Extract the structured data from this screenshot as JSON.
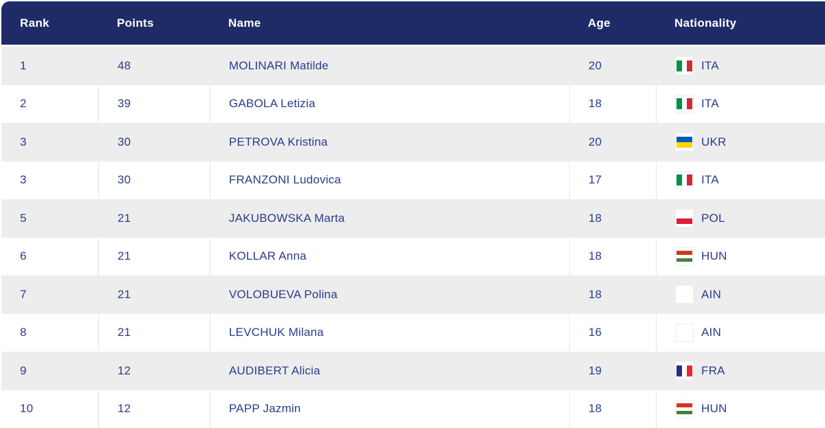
{
  "colors": {
    "header_bg": "#1e2b67",
    "header_text": "#ffffff",
    "row_bg": "#ffffff",
    "row_alt_bg": "#ededee",
    "cell_divider": "#e5e5e7",
    "text": "#2b3c8a"
  },
  "table": {
    "columns": [
      {
        "key": "rank",
        "label": "Rank"
      },
      {
        "key": "points",
        "label": "Points"
      },
      {
        "key": "name",
        "label": "Name"
      },
      {
        "key": "age",
        "label": "Age"
      },
      {
        "key": "nationality",
        "label": "Nationality"
      }
    ],
    "rows": [
      {
        "rank": "1",
        "points": "48",
        "name": "MOLINARI Matilde",
        "age": "20",
        "nationality": "ITA"
      },
      {
        "rank": "2",
        "points": "39",
        "name": "GABOLA Letizia",
        "age": "18",
        "nationality": "ITA"
      },
      {
        "rank": "3",
        "points": "30",
        "name": "PETROVA Kristina",
        "age": "20",
        "nationality": "UKR"
      },
      {
        "rank": "3",
        "points": "30",
        "name": "FRANZONI Ludovica",
        "age": "17",
        "nationality": "ITA"
      },
      {
        "rank": "5",
        "points": "21",
        "name": "JAKUBOWSKA Marta",
        "age": "18",
        "nationality": "POL"
      },
      {
        "rank": "6",
        "points": "21",
        "name": "KOLLAR Anna",
        "age": "18",
        "nationality": "HUN"
      },
      {
        "rank": "7",
        "points": "21",
        "name": "VOLOBUEVA Polina",
        "age": "18",
        "nationality": "AIN"
      },
      {
        "rank": "8",
        "points": "21",
        "name": "LEVCHUK Milana",
        "age": "16",
        "nationality": "AIN"
      },
      {
        "rank": "9",
        "points": "12",
        "name": "AUDIBERT Alicia",
        "age": "19",
        "nationality": "FRA"
      },
      {
        "rank": "10",
        "points": "12",
        "name": "PAPP Jazmin",
        "age": "18",
        "nationality": "HUN"
      }
    ]
  },
  "flags": {
    "ITA": {
      "orientation": "vertical",
      "stripes": [
        "#009246",
        "#ffffff",
        "#ce2b37"
      ]
    },
    "UKR": {
      "orientation": "horizontal",
      "stripes": [
        "#005bbb",
        "#ffd500"
      ]
    },
    "POL": {
      "orientation": "horizontal",
      "stripes": [
        "#ffffff",
        "#dc1e3e"
      ]
    },
    "HUN": {
      "orientation": "horizontal",
      "stripes": [
        "#cf3a1e",
        "#ffffff",
        "#477f3f"
      ]
    },
    "AIN": {
      "orientation": "horizontal",
      "stripes": [
        "#ffffff"
      ]
    },
    "FRA": {
      "orientation": "vertical",
      "stripes": [
        "#253085",
        "#ffffff",
        "#e8283c"
      ]
    }
  }
}
